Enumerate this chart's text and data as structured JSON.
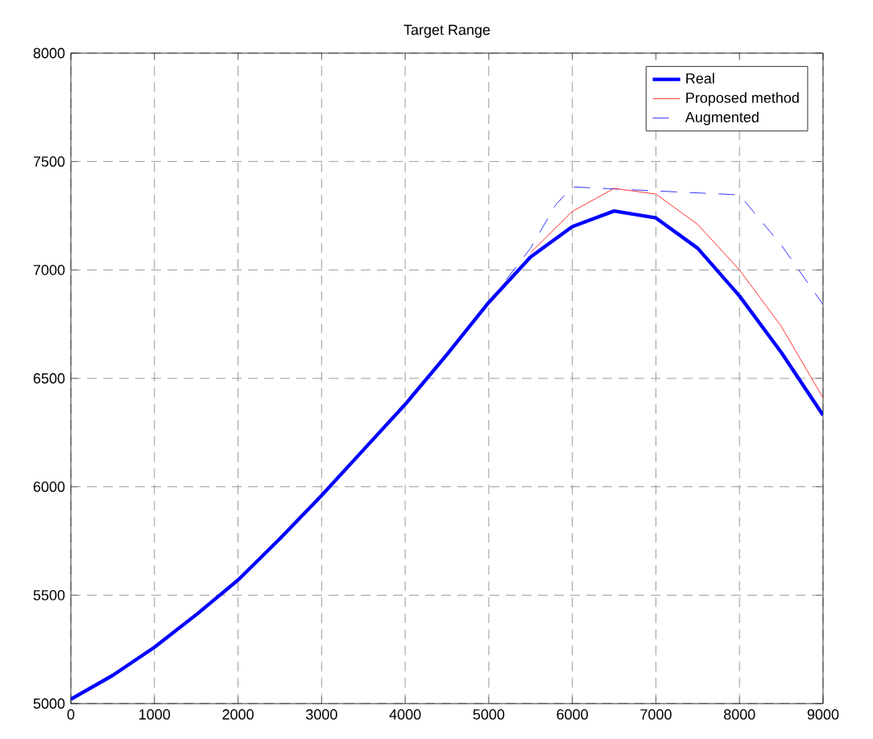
{
  "chart_data": {
    "type": "line",
    "title": "Target Range",
    "x": [
      0,
      500,
      1000,
      1500,
      2000,
      2500,
      3000,
      3500,
      4000,
      4500,
      5000,
      5500,
      6000,
      6500,
      7000,
      7500,
      8000,
      8500,
      9000
    ],
    "series": [
      {
        "name": "Real",
        "color": "#0000ff",
        "values": [
          5020,
          5130,
          5260,
          5410,
          5570,
          5760,
          5960,
          6170,
          6380,
          6610,
          6850,
          7060,
          7200,
          7272,
          7240,
          7100,
          6880,
          6620,
          6330
        ]
      },
      {
        "name": "Proposed method",
        "color": "#ff0000",
        "values": [
          null,
          null,
          null,
          null,
          null,
          null,
          null,
          null,
          null,
          null,
          null,
          7080,
          7270,
          7376,
          7350,
          7210,
          7000,
          6740,
          6410
        ]
      },
      {
        "name": "Augmented",
        "color": "#0000ff",
        "line_style": "dashed",
        "x": [
          0,
          500,
          1000,
          1500,
          2000,
          2500,
          3000,
          3500,
          4000,
          4500,
          5000,
          5500,
          5800,
          6000,
          8000,
          8500,
          9000
        ],
        "values": [
          5020,
          5130,
          5260,
          5410,
          5570,
          5760,
          5960,
          6170,
          6380,
          6610,
          6850,
          7100,
          7300,
          7383,
          7346,
          7115,
          6840
        ]
      }
    ],
    "xlim": [
      0,
      9000
    ],
    "ylim": [
      5000,
      8000
    ],
    "xticks": [
      0,
      1000,
      2000,
      3000,
      4000,
      5000,
      6000,
      7000,
      8000,
      9000
    ],
    "yticks": [
      5000,
      5500,
      6000,
      6500,
      7000,
      7500,
      8000
    ],
    "grid": true,
    "legend": "top right"
  }
}
